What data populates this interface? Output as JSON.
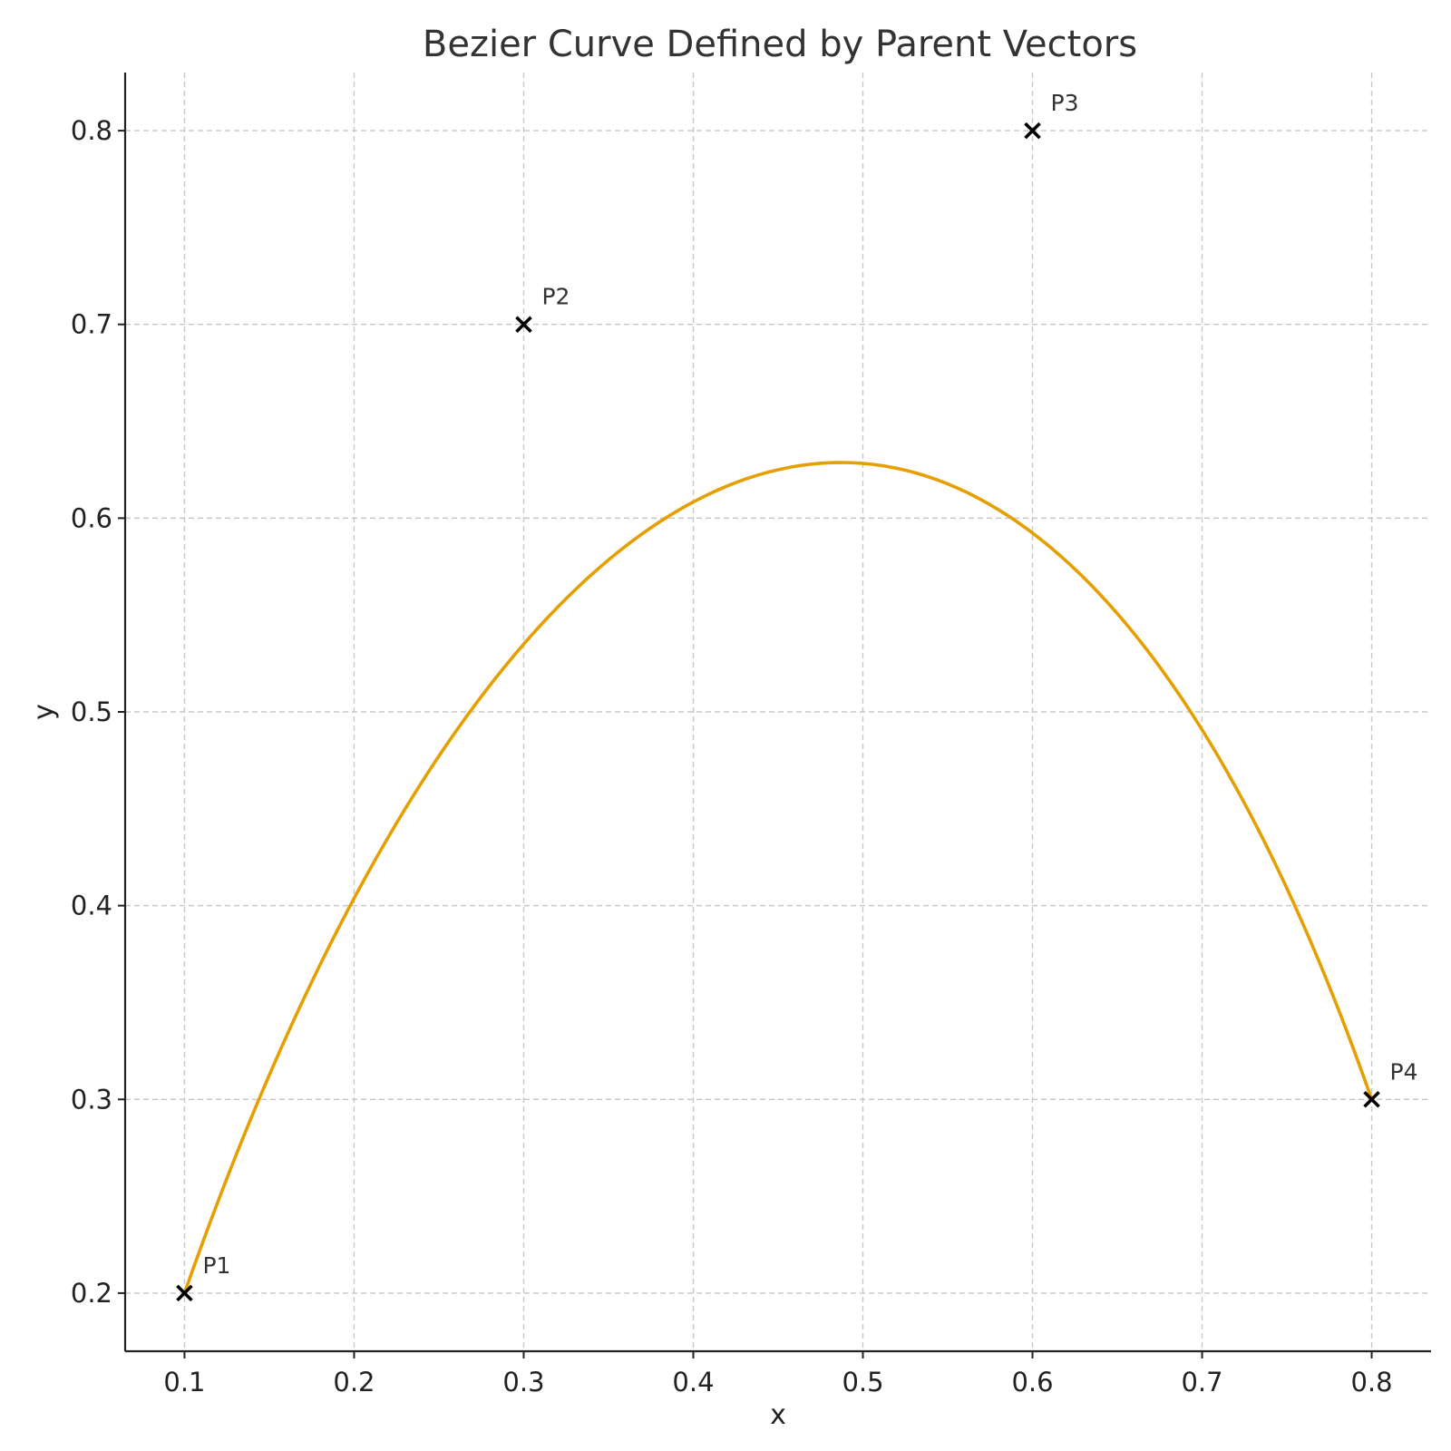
{
  "chart_data": {
    "type": "line",
    "title": "Bezier Curve Defined by Parent Vectors",
    "xlabel": "x",
    "ylabel": "y",
    "xlim": [
      0.065,
      0.835
    ],
    "ylim": [
      0.17,
      0.83
    ],
    "xticks": [
      0.1,
      0.2,
      0.3,
      0.4,
      0.5,
      0.6,
      0.7,
      0.8
    ],
    "xtick_labels": [
      "0.1",
      "0.2",
      "0.3",
      "0.4",
      "0.5",
      "0.6",
      "0.7",
      "0.8"
    ],
    "yticks": [
      0.2,
      0.3,
      0.4,
      0.5,
      0.6,
      0.7,
      0.8
    ],
    "ytick_labels": [
      "0.2",
      "0.3",
      "0.4",
      "0.5",
      "0.6",
      "0.7",
      "0.8"
    ],
    "grid": true,
    "control_points": [
      {
        "label": "P1",
        "x": 0.1,
        "y": 0.2
      },
      {
        "label": "P2",
        "x": 0.3,
        "y": 0.7
      },
      {
        "label": "P3",
        "x": 0.6,
        "y": 0.8
      },
      {
        "label": "P4",
        "x": 0.8,
        "y": 0.3
      }
    ],
    "series": [
      {
        "curve": "cubic-bezier",
        "color": "#E69F00",
        "x": [
          0.1,
          0.2,
          0.3,
          0.4,
          0.487,
          0.6,
          0.7,
          0.8
        ],
        "y": [
          0.2,
          0.405,
          0.537,
          0.607,
          0.628,
          0.592,
          0.49,
          0.3
        ]
      }
    ],
    "marker_color": "#000000"
  }
}
